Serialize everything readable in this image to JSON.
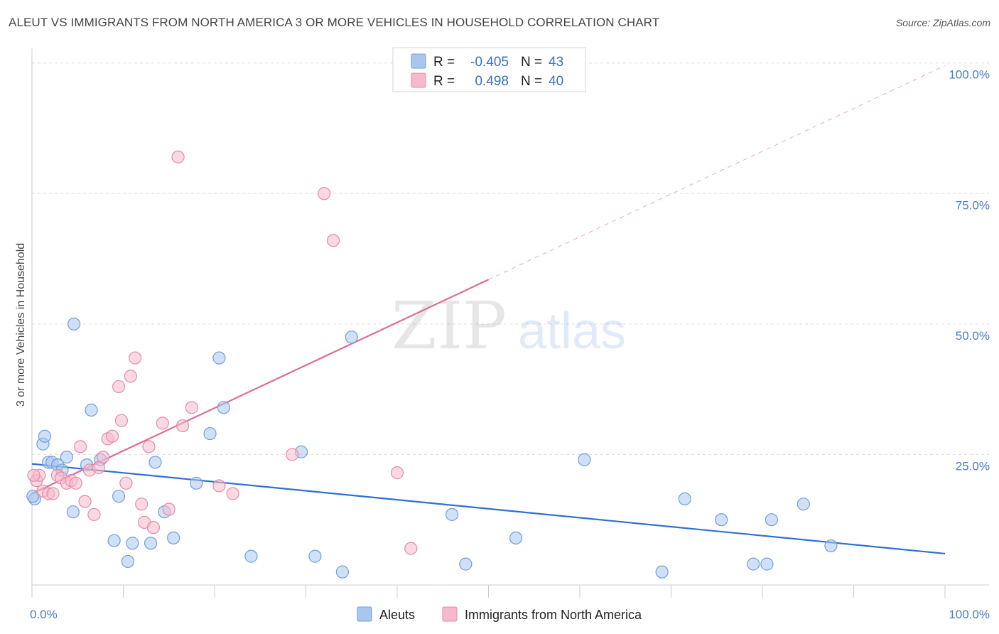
{
  "title": "ALEUT VS IMMIGRANTS FROM NORTH AMERICA 3 OR MORE VEHICLES IN HOUSEHOLD CORRELATION CHART",
  "source": "Source: ZipAtlas.com",
  "watermark": {
    "zip": "ZIP",
    "atlas": "atlas"
  },
  "chart_data": {
    "type": "scatter",
    "title": "ALEUT VS IMMIGRANTS FROM NORTH AMERICA 3 OR MORE VEHICLES IN HOUSEHOLD CORRELATION CHART",
    "xlabel": "",
    "ylabel": "3 or more Vehicles in Household",
    "xlim": [
      0,
      100
    ],
    "ylim": [
      0,
      102
    ],
    "x_tick_labels": [
      {
        "value": 0,
        "label": "0.0%"
      },
      {
        "value": 100,
        "label": "100.0%"
      }
    ],
    "y_tick_labels": [
      {
        "value": 25,
        "label": "25.0%"
      },
      {
        "value": 50,
        "label": "50.0%"
      },
      {
        "value": 75,
        "label": "75.0%"
      },
      {
        "value": 100,
        "label": "100.0%"
      }
    ],
    "grid": true,
    "legend_position": "top-center",
    "series": [
      {
        "name": "Aleuts",
        "color": "#a9c6ee",
        "stroke": "#6f9fdc",
        "r_label": "R =",
        "r_value": "-0.405",
        "n_label": "N =",
        "n_value": "43",
        "trend": {
          "x0": 0,
          "y0": 23.2,
          "x1": 100,
          "y1": 6.0,
          "color": "#2f6fd0"
        },
        "points": [
          [
            0.3,
            16.5
          ],
          [
            1.2,
            27.0
          ],
          [
            1.4,
            28.5
          ],
          [
            1.8,
            23.5
          ],
          [
            2.2,
            23.5
          ],
          [
            2.8,
            23.0
          ],
          [
            3.3,
            22.0
          ],
          [
            3.8,
            24.5
          ],
          [
            4.5,
            14.0
          ],
          [
            4.6,
            50.0
          ],
          [
            6.0,
            23.0
          ],
          [
            6.5,
            33.5
          ],
          [
            7.5,
            24.0
          ],
          [
            9.0,
            8.5
          ],
          [
            9.5,
            17.0
          ],
          [
            10.5,
            4.5
          ],
          [
            11.0,
            8.0
          ],
          [
            13.0,
            8.0
          ],
          [
            13.5,
            23.5
          ],
          [
            14.5,
            14.0
          ],
          [
            15.5,
            9.0
          ],
          [
            18.0,
            19.5
          ],
          [
            19.5,
            29.0
          ],
          [
            20.5,
            43.5
          ],
          [
            21.0,
            34.0
          ],
          [
            24.0,
            5.5
          ],
          [
            29.5,
            25.5
          ],
          [
            31.0,
            5.5
          ],
          [
            34.0,
            2.5
          ],
          [
            35.0,
            47.5
          ],
          [
            46.0,
            13.5
          ],
          [
            47.5,
            4.0
          ],
          [
            53.0,
            9.0
          ],
          [
            60.5,
            24.0
          ],
          [
            69.0,
            2.5
          ],
          [
            71.5,
            16.5
          ],
          [
            75.5,
            12.5
          ],
          [
            79.0,
            4.0
          ],
          [
            80.5,
            4.0
          ],
          [
            81.0,
            12.5
          ],
          [
            84.5,
            15.5
          ],
          [
            87.5,
            7.5
          ],
          [
            0.1,
            17.0
          ]
        ]
      },
      {
        "name": "Immigrants from North America",
        "color": "#f6b9cc",
        "stroke": "#e58aa8",
        "r_label": "R =",
        "r_value": "0.498",
        "n_label": "N =",
        "n_value": "40",
        "trend": {
          "x0": 0,
          "y0": 17.5,
          "x1": 50,
          "y1": 58.5,
          "color": "#e06a92"
        },
        "trend_extension": {
          "x0": 50,
          "y0": 58.5,
          "x1": 100,
          "y1": 99.5
        },
        "points": [
          [
            0.5,
            20.0
          ],
          [
            0.8,
            21.0
          ],
          [
            1.2,
            18.0
          ],
          [
            1.8,
            17.5
          ],
          [
            2.3,
            17.5
          ],
          [
            2.8,
            21.0
          ],
          [
            3.2,
            20.5
          ],
          [
            3.8,
            19.5
          ],
          [
            4.3,
            20.0
          ],
          [
            4.8,
            19.5
          ],
          [
            5.3,
            26.5
          ],
          [
            5.8,
            16.0
          ],
          [
            6.3,
            22.0
          ],
          [
            6.8,
            13.5
          ],
          [
            7.3,
            22.5
          ],
          [
            7.8,
            24.5
          ],
          [
            8.3,
            28.0
          ],
          [
            8.8,
            28.5
          ],
          [
            9.5,
            38.0
          ],
          [
            9.8,
            31.5
          ],
          [
            10.3,
            19.5
          ],
          [
            10.8,
            40.0
          ],
          [
            11.3,
            43.5
          ],
          [
            12.0,
            15.5
          ],
          [
            12.3,
            12.0
          ],
          [
            12.8,
            26.5
          ],
          [
            13.3,
            11.0
          ],
          [
            14.3,
            31.0
          ],
          [
            15.0,
            14.5
          ],
          [
            16.0,
            82.0
          ],
          [
            16.5,
            30.5
          ],
          [
            17.5,
            34.0
          ],
          [
            20.5,
            19.0
          ],
          [
            22.0,
            17.5
          ],
          [
            28.5,
            25.0
          ],
          [
            32.0,
            75.0
          ],
          [
            33.0,
            66.0
          ],
          [
            40.0,
            21.5
          ],
          [
            41.5,
            7.0
          ],
          [
            0.2,
            21.0
          ]
        ]
      }
    ]
  }
}
